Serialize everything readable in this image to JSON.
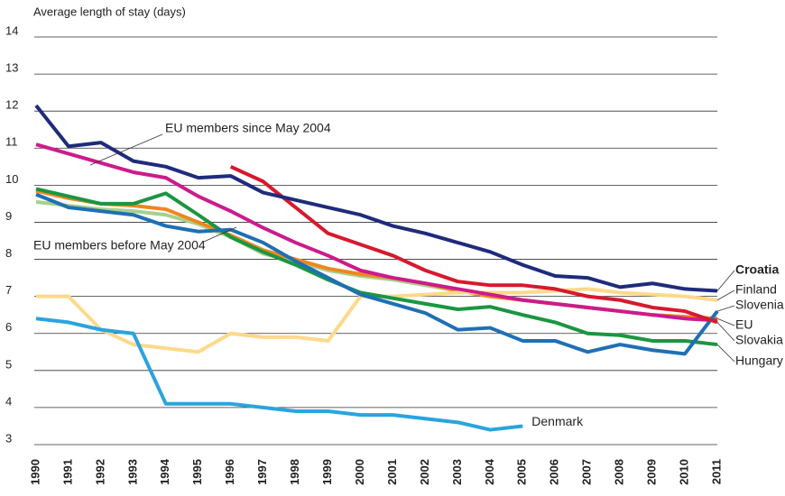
{
  "chart_data": {
    "type": "line",
    "y_label": "Average length of stay (days)",
    "x": [
      1990,
      1991,
      1992,
      1993,
      1994,
      1995,
      1996,
      1997,
      1998,
      1999,
      2000,
      2001,
      2002,
      2003,
      2004,
      2005,
      2006,
      2007,
      2008,
      2009,
      2010,
      2011
    ],
    "xlim": [
      1990,
      2011
    ],
    "ylim": [
      3,
      14
    ],
    "yticks": [
      3,
      4,
      5,
      6,
      7,
      8,
      9,
      10,
      11,
      12,
      13,
      14
    ],
    "grid": true,
    "series": [
      {
        "name": "EU members before May 2004",
        "color": "#a8d08d",
        "values": [
          9.55,
          9.45,
          9.35,
          9.3,
          9.2,
          8.95,
          8.6,
          8.15,
          7.95,
          7.7,
          7.55,
          7.45,
          7.3,
          7.15,
          7.0,
          6.9,
          6.8,
          6.7,
          6.6,
          6.5,
          6.45,
          6.4
        ]
      },
      {
        "name": "EU",
        "color": "#f0861e",
        "values": [
          9.85,
          9.65,
          9.5,
          9.45,
          9.35,
          9.0,
          8.65,
          8.25,
          8.0,
          7.75,
          7.6,
          7.5,
          7.35,
          7.15,
          7.0,
          6.9,
          6.8,
          6.7,
          6.6,
          6.5,
          6.45,
          6.4
        ]
      },
      {
        "name": "Finland",
        "color": "#fdd98a",
        "values": [
          7.0,
          7.0,
          6.1,
          5.7,
          5.6,
          5.5,
          6.0,
          5.9,
          5.9,
          5.8,
          7.0,
          7.0,
          7.05,
          7.1,
          7.1,
          7.1,
          7.15,
          7.2,
          7.1,
          7.05,
          7.0,
          6.9
        ]
      },
      {
        "name": "EU members since May 2004",
        "color": "#cc1b8c",
        "values": [
          11.1,
          10.85,
          10.6,
          10.35,
          10.2,
          9.7,
          9.3,
          8.85,
          8.45,
          8.1,
          7.7,
          7.5,
          7.35,
          7.2,
          7.05,
          6.9,
          6.8,
          6.7,
          6.6,
          6.5,
          6.4,
          6.35
        ]
      },
      {
        "name": "Hungary",
        "color": "#1a9641",
        "values": [
          9.9,
          9.7,
          9.5,
          9.5,
          9.78,
          9.2,
          8.6,
          8.2,
          7.85,
          7.45,
          7.1,
          6.95,
          6.8,
          6.65,
          6.72,
          6.5,
          6.3,
          6.0,
          5.95,
          5.8,
          5.8,
          5.7
        ]
      },
      {
        "name": "Slovenia",
        "color": "#1f6fb5",
        "values": [
          9.75,
          9.4,
          9.3,
          9.2,
          8.9,
          8.75,
          8.8,
          8.45,
          7.95,
          7.5,
          7.05,
          6.8,
          6.55,
          6.1,
          6.15,
          5.8,
          5.8,
          5.5,
          5.7,
          5.55,
          5.45,
          6.6
        ]
      },
      {
        "name": "Slovakia",
        "color": "#d7192d",
        "values": [
          null,
          null,
          null,
          null,
          null,
          null,
          10.5,
          10.1,
          9.4,
          8.7,
          8.4,
          8.1,
          7.7,
          7.4,
          7.3,
          7.3,
          7.2,
          7.0,
          6.9,
          6.7,
          6.6,
          6.3
        ]
      },
      {
        "name": "Croatia",
        "color": "#1f2b7b",
        "values": [
          12.15,
          11.05,
          11.15,
          10.65,
          10.5,
          10.2,
          10.25,
          9.8,
          9.6,
          9.4,
          9.2,
          8.9,
          8.7,
          8.45,
          8.2,
          7.85,
          7.55,
          7.5,
          7.25,
          7.35,
          7.2,
          7.15
        ]
      },
      {
        "name": "Denmark",
        "color": "#2aa4dd",
        "values": [
          6.4,
          6.3,
          6.1,
          6.0,
          4.1,
          4.1,
          4.1,
          4.0,
          3.9,
          3.9,
          3.8,
          3.8,
          3.7,
          3.6,
          3.4,
          3.5,
          null,
          null,
          null,
          null,
          null,
          null
        ]
      }
    ]
  }
}
